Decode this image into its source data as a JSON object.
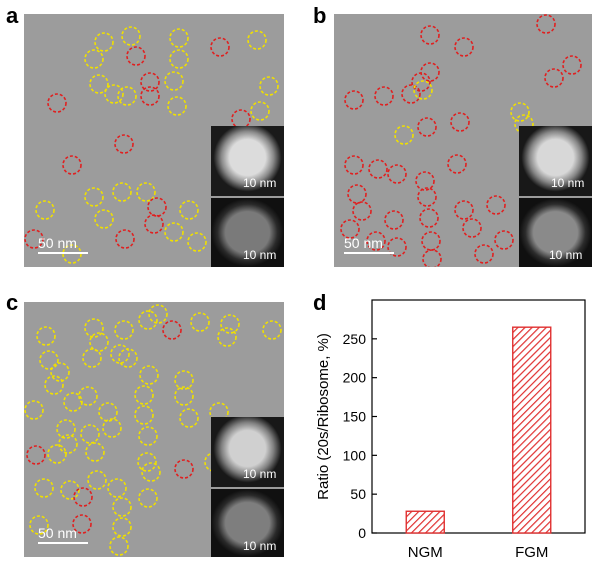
{
  "panels": {
    "a": {
      "letter": "a",
      "scale_label": "50 nm",
      "inset_top_label": "10 nm",
      "inset_bottom_label": "10 nm"
    },
    "b": {
      "letter": "b",
      "scale_label": "50 nm",
      "inset_top_label": "10 nm",
      "inset_bottom_label": "10 nm"
    },
    "c": {
      "letter": "c",
      "scale_label": "50 nm",
      "inset_top_label": "10 nm",
      "inset_bottom_label": "10 nm"
    },
    "d": {
      "letter": "d"
    }
  },
  "colors": {
    "red_circle": "#e02020",
    "yellow_circle": "#f0e000",
    "bar": "#e03030"
  },
  "chart_data": {
    "type": "bar",
    "categories": [
      "NGM",
      "FGM"
    ],
    "values": [
      28,
      265
    ],
    "xlabel": "",
    "ylabel": "Ratio (20s/Ribosome, %)",
    "ylim": [
      0,
      300
    ],
    "yticks": [
      0,
      50,
      100,
      150,
      200,
      250
    ],
    "pattern": "hatched"
  }
}
